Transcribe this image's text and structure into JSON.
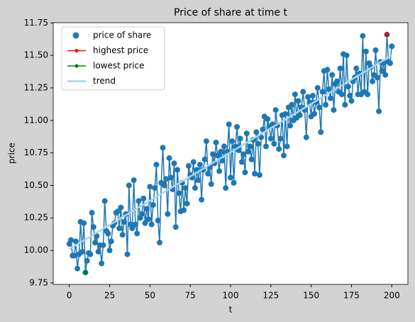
{
  "chart_data": {
    "type": "line",
    "title": "Price of share at time t",
    "x_label": "t",
    "y_label": "price",
    "xlim": [
      -10,
      210
    ],
    "xticks": [
      0,
      25,
      50,
      75,
      100,
      125,
      150,
      175,
      200
    ],
    "ylim": [
      9.7385,
      11.7515
    ],
    "yticks": [
      9.75,
      {
        "value": 10,
        "label": "10.00"
      },
      10.25,
      {
        "value": 10.5,
        "label": "10.50"
      },
      10.75,
      {
        "value": 11,
        "label": "11.00"
      },
      11.25,
      {
        "value": 11.5,
        "label": "11.50"
      },
      11.75
    ],
    "legend": "upper left",
    "series": [
      {
        "name": "price of share",
        "color": "#1f77b4",
        "kind": "scatter",
        "x": [
          0,
          1,
          2,
          3,
          4,
          5,
          6,
          7,
          8,
          9,
          10,
          11,
          12,
          13,
          14,
          15,
          16,
          17,
          18,
          19,
          20,
          21,
          22,
          23,
          24,
          25,
          26,
          27,
          28,
          29,
          30,
          31,
          32,
          33,
          34,
          35,
          36,
          37,
          38,
          39,
          40,
          41,
          42,
          43,
          44,
          45,
          46,
          47,
          48,
          49,
          50,
          51,
          52,
          53,
          54,
          55,
          56,
          57,
          58,
          59,
          60,
          61,
          62,
          63,
          64,
          65,
          66,
          67,
          68,
          69,
          70,
          71,
          72,
          73,
          74,
          75,
          76,
          77,
          78,
          79,
          80,
          81,
          82,
          83,
          84,
          85,
          86,
          87,
          88,
          89,
          90,
          91,
          92,
          93,
          94,
          95,
          96,
          97,
          98,
          99,
          100,
          101,
          102,
          103,
          104,
          105,
          106,
          107,
          108,
          109,
          110,
          111,
          112,
          113,
          114,
          115,
          116,
          117,
          118,
          119,
          120,
          121,
          122,
          123,
          124,
          125,
          126,
          127,
          128,
          129,
          130,
          131,
          132,
          133,
          134,
          135,
          136,
          137,
          138,
          139,
          140,
          141,
          142,
          143,
          144,
          145,
          146,
          147,
          148,
          149,
          150,
          151,
          152,
          153,
          154,
          155,
          156,
          157,
          158,
          159,
          160,
          161,
          162,
          163,
          164,
          165,
          166,
          167,
          168,
          169,
          170,
          171,
          172,
          173,
          174,
          175,
          176,
          177,
          178,
          179,
          180,
          181,
          182,
          183,
          184,
          185,
          186,
          187,
          188,
          189,
          190,
          191,
          192,
          193,
          194,
          195,
          196,
          197,
          198,
          199,
          200
        ],
        "values": [
          10.05,
          10.08,
          9.96,
          9.96,
          10.07,
          9.86,
          9.97,
          10.22,
          9.99,
          10.21,
          9.83,
          9.92,
          9.98,
          9.97,
          10.29,
          10.18,
          10.06,
          10.11,
          9.99,
          10.04,
          9.9,
          10.04,
          10.38,
          10.15,
          10.13,
          10.0,
          10.07,
          10.19,
          10.21,
          10.29,
          10.3,
          10.17,
          10.33,
          10.12,
          10.22,
          10.28,
          9.97,
          10.5,
          10.2,
          10.17,
          10.54,
          10.2,
          10.13,
          10.38,
          10.25,
          10.28,
          10.4,
          10.21,
          10.32,
          10.24,
          10.49,
          10.2,
          10.35,
          10.48,
          10.66,
          10.23,
          10.06,
          10.52,
          10.79,
          10.5,
          10.55,
          10.28,
          10.71,
          10.56,
          10.47,
          10.67,
          10.18,
          10.62,
          10.44,
          10.3,
          10.52,
          10.31,
          10.48,
          10.36,
          10.65,
          10.58,
          10.56,
          10.68,
          10.48,
          10.62,
          10.54,
          10.66,
          10.39,
          10.62,
          10.7,
          10.84,
          10.59,
          10.64,
          10.51,
          10.74,
          10.67,
          10.83,
          10.73,
          10.61,
          10.76,
          10.69,
          10.8,
          10.48,
          10.76,
          10.97,
          10.56,
          10.84,
          10.52,
          10.8,
          10.95,
          10.77,
          10.86,
          10.68,
          10.74,
          10.6,
          10.9,
          10.76,
          10.8,
          10.7,
          10.85,
          10.59,
          10.91,
          10.82,
          10.58,
          10.87,
          10.93,
          11.03,
          10.8,
          11.01,
          10.95,
          10.86,
          10.97,
          10.82,
          11.08,
          10.96,
          10.78,
          10.86,
          11.04,
          10.73,
          11.05,
          10.8,
          11.1,
          10.96,
          11.12,
          11.0,
          11.2,
          11.02,
          11.15,
          11.04,
          11.1,
          11.22,
          11.08,
          10.87,
          11.18,
          11.14,
          11.03,
          11.19,
          11.05,
          11.14,
          11.25,
          11.1,
          10.91,
          11.22,
          11.38,
          11.12,
          11.39,
          11.24,
          11.17,
          11.35,
          11.08,
          11.28,
          11.3,
          11.22,
          11.4,
          11.2,
          11.51,
          11.12,
          11.5,
          11.26,
          11.19,
          11.15,
          11.3,
          11.33,
          11.4,
          11.2,
          11.36,
          11.2,
          11.65,
          11.22,
          11.53,
          11.2,
          11.44,
          11.41,
          11.3,
          11.35,
          11.54,
          11.33,
          11.07,
          11.45,
          11.38,
          11.44,
          11.35,
          11.66,
          11.45,
          11.44,
          11.57
        ]
      },
      {
        "name": "highest price",
        "color": "#ff0000",
        "kind": "point",
        "x": [
          197
        ],
        "values": [
          11.66
        ]
      },
      {
        "name": "lowest price",
        "color": "#008000",
        "kind": "point",
        "x": [
          10
        ],
        "values": [
          9.83
        ]
      },
      {
        "name": "trend",
        "color": "#a6d5ee",
        "kind": "line",
        "x": [
          0,
          200
        ],
        "values": [
          10.01,
          11.5
        ]
      }
    ]
  }
}
